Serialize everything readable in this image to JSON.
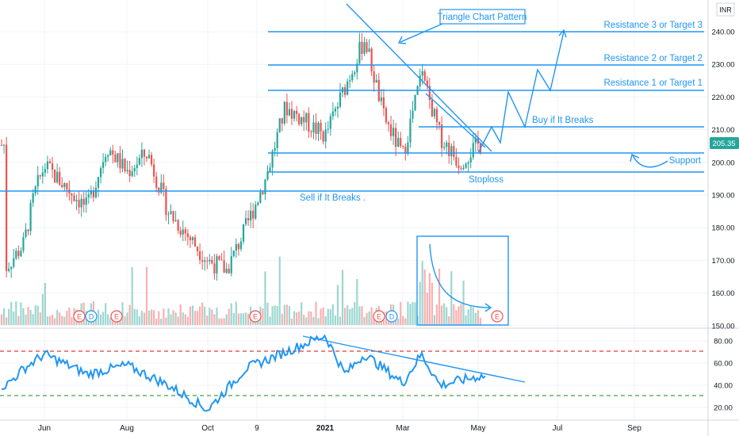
{
  "currency_label": "INR",
  "last_price_label": "205.35",
  "chart_data": [
    {
      "type": "line",
      "title": "",
      "xlabel": "",
      "ylabel": "",
      "x_ticks": [
        "Jun",
        "Aug",
        "Oct",
        "9",
        "2021",
        "Mar",
        "May",
        "Jul",
        "Sep"
      ],
      "y_ticks": [
        "240.00",
        "230.00",
        "220.00",
        "210.00",
        "200.00",
        "190.00",
        "180.00",
        "170.00",
        "160.00",
        "150.00"
      ],
      "ylim": [
        150,
        240
      ],
      "grid": true,
      "price_path": [
        {
          "x": "Apr 2020",
          "y": 168
        },
        {
          "x": "May 2020",
          "y": 175
        },
        {
          "x": "May 2020",
          "y": 190
        },
        {
          "x": "Jun 2020",
          "y": 199
        },
        {
          "x": "Jul 2020",
          "y": 186
        },
        {
          "x": "Jul 2020",
          "y": 205
        },
        {
          "x": "Aug 2020",
          "y": 197
        },
        {
          "x": "Aug 2020",
          "y": 203
        },
        {
          "x": "Sep 2020",
          "y": 185
        },
        {
          "x": "Oct 2020",
          "y": 170
        },
        {
          "x": "Oct 2020",
          "y": 167
        },
        {
          "x": "Nov 2020",
          "y": 180
        },
        {
          "x": "Nov 2020",
          "y": 195
        },
        {
          "x": "Dec 2020",
          "y": 217
        },
        {
          "x": "Jan 2021",
          "y": 208
        },
        {
          "x": "Feb 2021",
          "y": 238
        },
        {
          "x": "Feb 2021",
          "y": 214
        },
        {
          "x": "Mar 2021",
          "y": 202
        },
        {
          "x": "Mar 2021",
          "y": 227
        },
        {
          "x": "Apr 2021",
          "y": 208
        },
        {
          "x": "Apr 2021",
          "y": 200
        },
        {
          "x": "May 2021",
          "y": 205.35
        }
      ],
      "levels": [
        {
          "name": "Resistance 3 or Target 3",
          "y": 239.2
        },
        {
          "name": "Resistance 2 or Target 2",
          "y": 229
        },
        {
          "name": "Resistance 1 or Target 1",
          "y": 221.2
        },
        {
          "name": "Buy if It Breaks",
          "y": 210.3
        },
        {
          "name": "Support",
          "y": 202.4
        },
        {
          "name": "Stoploss",
          "y": 196.2
        },
        {
          "name": "Sell if It Breaks .",
          "y": 190.2
        }
      ],
      "annotations": [
        "Triangle Chart Pattern"
      ],
      "event_markers": [
        "E",
        "D",
        "E",
        "E",
        "E",
        "D",
        "E"
      ]
    },
    {
      "type": "line",
      "title": "",
      "y_ticks": [
        "80.00",
        "60.00",
        "40.00",
        "20.00"
      ],
      "ylim": [
        15,
        88
      ],
      "reference_lines": [
        70,
        30
      ],
      "values": [
        {
          "x": "Apr 2020",
          "y": 40
        },
        {
          "x": "May 2020",
          "y": 55
        },
        {
          "x": "Jun 2020",
          "y": 68
        },
        {
          "x": "Jul 2020",
          "y": 50
        },
        {
          "x": "Aug 2020",
          "y": 58
        },
        {
          "x": "Sep 2020",
          "y": 40
        },
        {
          "x": "Oct 2020",
          "y": 18
        },
        {
          "x": "Nov 2020",
          "y": 55
        },
        {
          "x": "Dec 2020",
          "y": 70
        },
        {
          "x": "Jan 2021",
          "y": 85
        },
        {
          "x": "Jan 2021",
          "y": 50
        },
        {
          "x": "Feb 2021",
          "y": 68
        },
        {
          "x": "Mar 2021",
          "y": 42
        },
        {
          "x": "Mar 2021",
          "y": 68
        },
        {
          "x": "Apr 2021",
          "y": 40
        },
        {
          "x": "May 2021",
          "y": 48
        }
      ]
    }
  ]
}
